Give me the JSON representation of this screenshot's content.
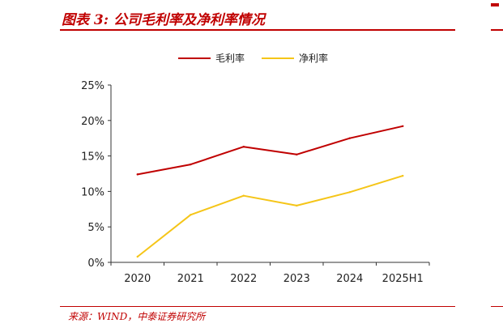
{
  "header": {
    "title": "图表 3: 公司毛利率及净利率情况"
  },
  "footer": {
    "source": "来源：WIND，中泰证券研究所"
  },
  "colors": {
    "accent": "#c00000",
    "gross_margin": "#c00000",
    "net_margin": "#f5c518"
  },
  "chart_data": {
    "type": "line",
    "x": [
      "2020",
      "2021",
      "2022",
      "2023",
      "2024",
      "2025H1"
    ],
    "series": [
      {
        "name": "毛利率",
        "values": [
          12.4,
          13.8,
          16.3,
          15.2,
          17.5,
          19.2
        ],
        "color": "#c00000"
      },
      {
        "name": "净利率",
        "values": [
          0.8,
          6.7,
          9.4,
          8.0,
          9.9,
          12.2
        ],
        "color": "#f5c518"
      }
    ],
    "ylim": [
      0,
      25
    ],
    "yticks": [
      "0%",
      "5%",
      "10%",
      "15%",
      "20%",
      "25%"
    ],
    "ytick_values": [
      0,
      5,
      10,
      15,
      20,
      25
    ],
    "grid": false,
    "legend": "top-center",
    "title": "",
    "xlabel": "",
    "ylabel": ""
  }
}
